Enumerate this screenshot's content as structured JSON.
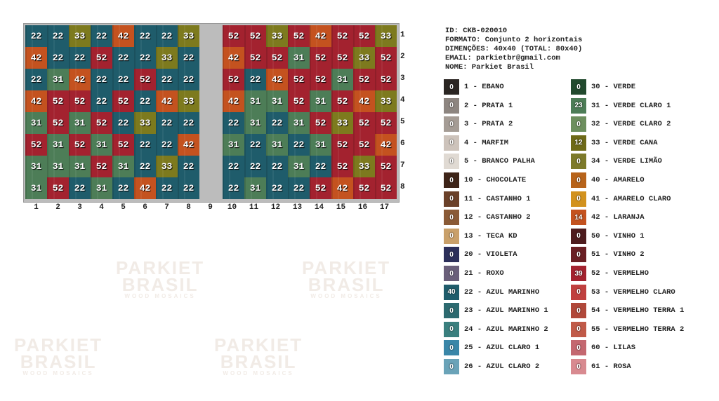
{
  "info": {
    "id": "ID: CKB-020010",
    "formato": "FORMATO: Conjunto 2 horizontais",
    "dimensoes": "DIMENÇÕES: 40x40 (TOTAL: 80x40)",
    "email": "EMAIL: parkietbr@gmail.com",
    "nome": "NOME: Parkiet Brasil"
  },
  "watermark": {
    "line1": "PARKIET",
    "line2": "BRASIL",
    "line3": "WOOD MOSAICS"
  },
  "colors": {
    "22": "#1f5c6b",
    "31": "#4d7d57",
    "33": "#7d7a1e",
    "42": "#c4521f",
    "52": "#a3222f"
  },
  "left_grid": [
    [
      "22",
      "22",
      "33",
      "22",
      "42",
      "22",
      "22",
      "33"
    ],
    [
      "42",
      "22",
      "22",
      "52",
      "22",
      "22",
      "33",
      "22"
    ],
    [
      "22",
      "31",
      "42",
      "22",
      "22",
      "52",
      "22",
      "22"
    ],
    [
      "42",
      "52",
      "52",
      "22",
      "52",
      "22",
      "42",
      "33"
    ],
    [
      "31",
      "52",
      "31",
      "52",
      "22",
      "33",
      "22",
      "22"
    ],
    [
      "52",
      "31",
      "52",
      "31",
      "52",
      "22",
      "22",
      "42"
    ],
    [
      "31",
      "31",
      "31",
      "52",
      "31",
      "22",
      "33",
      "22"
    ],
    [
      "31",
      "52",
      "22",
      "31",
      "22",
      "42",
      "22",
      "22"
    ]
  ],
  "right_grid": [
    [
      "52",
      "52",
      "33",
      "52",
      "42",
      "52",
      "52",
      "33"
    ],
    [
      "42",
      "52",
      "52",
      "31",
      "52",
      "52",
      "33",
      "52"
    ],
    [
      "52",
      "22",
      "42",
      "52",
      "52",
      "31",
      "52",
      "52"
    ],
    [
      "42",
      "31",
      "31",
      "52",
      "31",
      "52",
      "42",
      "33"
    ],
    [
      "22",
      "31",
      "22",
      "31",
      "52",
      "33",
      "52",
      "52"
    ],
    [
      "31",
      "22",
      "31",
      "22",
      "31",
      "52",
      "52",
      "42"
    ],
    [
      "22",
      "22",
      "22",
      "31",
      "22",
      "52",
      "33",
      "52"
    ],
    [
      "22",
      "31",
      "22",
      "22",
      "52",
      "42",
      "52",
      "52"
    ]
  ],
  "row_numbers": [
    "1",
    "2",
    "3",
    "4",
    "5",
    "6",
    "7",
    "8"
  ],
  "column_numbers": [
    "1",
    "2",
    "3",
    "4",
    "5",
    "6",
    "7",
    "8",
    "9",
    "10",
    "11",
    "12",
    "13",
    "14",
    "15",
    "16",
    "17"
  ],
  "legend_left": [
    {
      "count": "0",
      "label": "1 - EBANO",
      "color": "#2a2522"
    },
    {
      "count": "0",
      "label": "2 - PRATA 1",
      "color": "#8d8580"
    },
    {
      "count": "0",
      "label": "3 - PRATA 2",
      "color": "#a59c95"
    },
    {
      "count": "0",
      "label": "4 - MARFIM",
      "color": "#cdc3bb"
    },
    {
      "count": "0",
      "label": "5 - BRANCO PALHA",
      "color": "#e0dad3"
    },
    {
      "count": "0",
      "label": "10 - CHOCOLATE",
      "color": "#3e2418"
    },
    {
      "count": "0",
      "label": "11 - CASTANHO 1",
      "color": "#6b4129"
    },
    {
      "count": "0",
      "label": "12 - CASTANHO 2",
      "color": "#8a5a36"
    },
    {
      "count": "0",
      "label": "13 - TECA KD",
      "color": "#c9a06a"
    },
    {
      "count": "0",
      "label": "20 - VIOLETA",
      "color": "#2c2f5a"
    },
    {
      "count": "0",
      "label": "21 - ROXO",
      "color": "#6a5f7a"
    },
    {
      "count": "40",
      "label": "22 - AZUL MARINHO",
      "color": "#1f5c6b"
    },
    {
      "count": "0",
      "label": "23 - AZUL  MARINHO 1",
      "color": "#2d6a70"
    },
    {
      "count": "0",
      "label": "24 - AZUL MARINHO 2",
      "color": "#3a7f7e"
    },
    {
      "count": "0",
      "label": "25 - AZUL CLARO 1",
      "color": "#3a86a8"
    },
    {
      "count": "0",
      "label": "26 - AZUL CLARO 2",
      "color": "#6aa3b8"
    }
  ],
  "legend_right": [
    {
      "count": "0",
      "label": "30 - VERDE",
      "color": "#224a2e"
    },
    {
      "count": "23",
      "label": "31 - VERDE CLARO 1",
      "color": "#4d7d57"
    },
    {
      "count": "0",
      "label": "32 - VERDE CLARO 2",
      "color": "#6d8f5e"
    },
    {
      "count": "12",
      "label": "33 - VERDE CANA",
      "color": "#6e6a18"
    },
    {
      "count": "0",
      "label": "34 - VERDE LIMÃO",
      "color": "#7d7a2a"
    },
    {
      "count": "0",
      "label": "40 - AMARELO",
      "color": "#b7631a"
    },
    {
      "count": "0",
      "label": "41 - AMARELO CLARO",
      "color": "#d2921e"
    },
    {
      "count": "14",
      "label": "42 - LARANJA",
      "color": "#c4521f"
    },
    {
      "count": "0",
      "label": "50 - VINHO 1",
      "color": "#4e1c1e"
    },
    {
      "count": "0",
      "label": "51 - VINHO 2",
      "color": "#6a1f24"
    },
    {
      "count": "39",
      "label": "52 - VERMELHO",
      "color": "#a3222f"
    },
    {
      "count": "0",
      "label": "53 - VERMELHO CLARO",
      "color": "#c0403f"
    },
    {
      "count": "0",
      "label": "54 - VERMELHO TERRA 1",
      "color": "#b0483a"
    },
    {
      "count": "0",
      "label": "55 - VERMELHO TERRA 2",
      "color": "#c05a48"
    },
    {
      "count": "0",
      "label": "60 - LILAS",
      "color": "#c46870"
    },
    {
      "count": "0",
      "label": "61 - ROSA",
      "color": "#d88a90"
    }
  ]
}
